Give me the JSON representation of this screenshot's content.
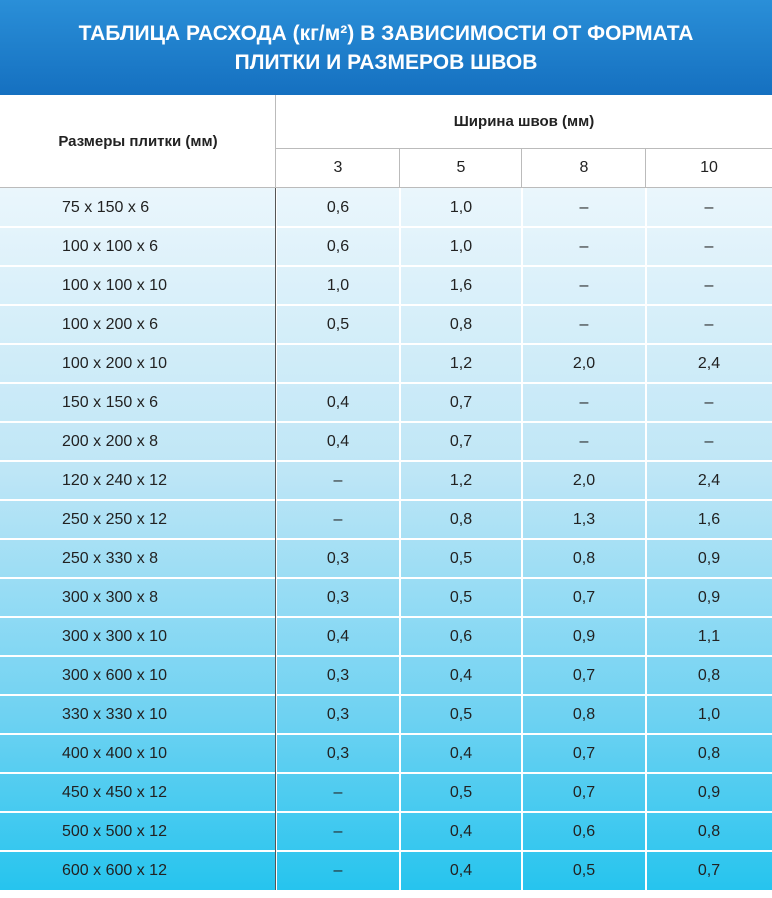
{
  "header": {
    "title_lines": [
      "ТАБЛИЦА РАСХОДА (кг/м²) В ЗАВИСИМОСТИ ОТ ФОРМАТА",
      "ПЛИТКИ И РАЗМЕРОВ ШВОВ"
    ]
  },
  "table": {
    "size_header": "Размеры плитки (мм)",
    "width_header": "Ширина швов (мм)",
    "widths": [
      "3",
      "5",
      "8",
      "10"
    ],
    "rows": [
      [
        "75 x 150 x 6",
        "0,6",
        "1,0",
        "–",
        "–"
      ],
      [
        "100 x 100 x 6",
        "0,6",
        "1,0",
        "–",
        "–"
      ],
      [
        "100 x 100 x 10",
        "1,0",
        "1,6",
        "–",
        "–"
      ],
      [
        "100 x 200 x 6",
        "0,5",
        "0,8",
        "–",
        "–"
      ],
      [
        "100 x 200 x 10",
        null,
        "1,2",
        "2,0",
        "2,4"
      ],
      [
        "150 x 150 x 6",
        "0,4",
        "0,7",
        "–",
        "–"
      ],
      [
        "200 x 200 x 8",
        "0,4",
        "0,7",
        "–",
        "–"
      ],
      [
        "120 x 240 x 12",
        "–",
        "1,2",
        "2,0",
        "2,4"
      ],
      [
        "250 x 250 x 12",
        "–",
        "0,8",
        "1,3",
        "1,6"
      ],
      [
        "250 x 330 x 8",
        "0,3",
        "0,5",
        "0,8",
        "0,9"
      ],
      [
        "300 x 300 x 8",
        "0,3",
        "0,5",
        "0,7",
        "0,9"
      ],
      [
        "300 x 300 x 10",
        "0,4",
        "0,6",
        "0,9",
        "1,1"
      ],
      [
        "300 x 600 x 10",
        "0,3",
        "0,4",
        "0,7",
        "0,8"
      ],
      [
        "330 x 330 x 10",
        "0,3",
        "0,5",
        "0,8",
        "1,0"
      ],
      [
        "400 x 400 x 10",
        "0,3",
        "0,4",
        "0,7",
        "0,8"
      ],
      [
        "450 x 450 x 12",
        "–",
        "0,5",
        "0,7",
        "0,9"
      ],
      [
        "500 x 500 x 12",
        "–",
        "0,4",
        "0,6",
        "0,8"
      ],
      [
        "600 x 600 x 12",
        "–",
        "0,4",
        "0,5",
        "0,7"
      ]
    ]
  }
}
